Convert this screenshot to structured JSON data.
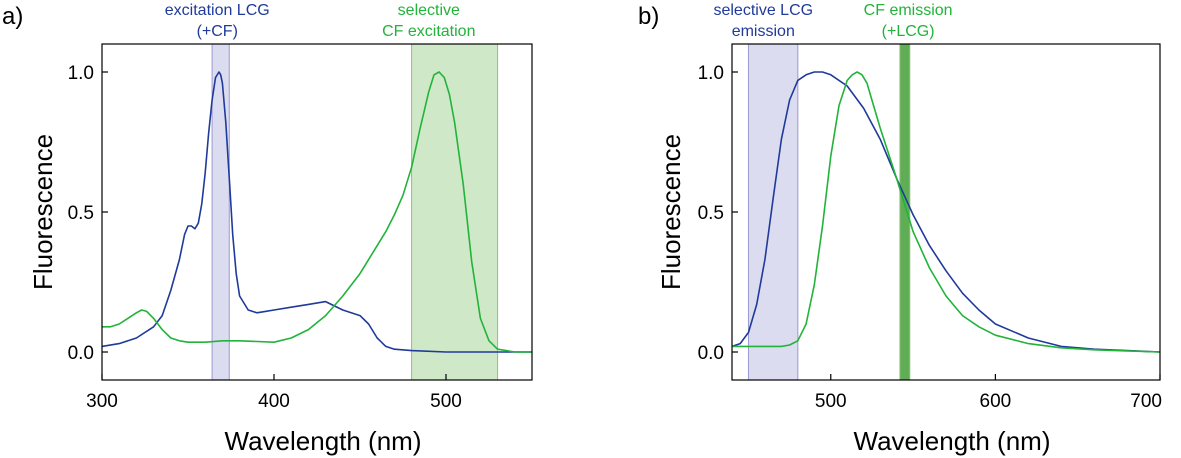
{
  "colors": {
    "blue": "#1f3a9b",
    "green": "#22b33a",
    "blue_band": "#dcdcf0",
    "blue_band_edge": "#9a9ad0",
    "green_band": "#cfe8c7",
    "green_band_edge": "#8cc07e",
    "green_band_dark": "#5fae55"
  },
  "chart_data": [
    {
      "type": "line",
      "panel": "a)",
      "xlabel": "Wavelength (nm)",
      "ylabel": "Fluorescence",
      "xlim": [
        300,
        550
      ],
      "ylim": [
        -0.1,
        1.1
      ],
      "xticks": [
        300,
        400,
        500
      ],
      "xtick_labels": [
        "300",
        "400",
        "500"
      ],
      "yticks": [
        0.0,
        0.5,
        1.0
      ],
      "ytick_labels": [
        "0.0",
        "0.5",
        "1.0"
      ],
      "bands": [
        {
          "name": "excitation-lcg-band",
          "from": 364,
          "to": 374,
          "color": "blue",
          "label_lines": [
            "excitation LCG",
            "(+CF)"
          ],
          "label_x": 367
        },
        {
          "name": "cf-excitation-band",
          "from": 480,
          "to": 530,
          "color": "green",
          "label_lines": [
            "selective",
            "CF excitation"
          ],
          "label_x": 490
        }
      ],
      "series": [
        {
          "name": "LCG excitation",
          "color": "blue",
          "x": [
            300,
            310,
            320,
            330,
            335,
            340,
            345,
            348,
            350,
            352,
            354,
            356,
            358,
            360,
            362,
            364,
            366,
            368,
            369,
            370,
            372,
            374,
            376,
            378,
            380,
            385,
            390,
            395,
            400,
            410,
            420,
            430,
            440,
            450,
            455,
            460,
            465,
            470,
            480,
            500,
            520,
            550
          ],
          "y": [
            0.02,
            0.03,
            0.05,
            0.09,
            0.13,
            0.22,
            0.33,
            0.42,
            0.45,
            0.45,
            0.44,
            0.46,
            0.53,
            0.64,
            0.78,
            0.9,
            0.98,
            1.0,
            0.99,
            0.96,
            0.82,
            0.62,
            0.42,
            0.28,
            0.2,
            0.15,
            0.14,
            0.145,
            0.15,
            0.16,
            0.17,
            0.18,
            0.15,
            0.13,
            0.1,
            0.05,
            0.02,
            0.01,
            0.005,
            0.0,
            0.0,
            0.0
          ]
        },
        {
          "name": "CF excitation",
          "color": "green",
          "x": [
            300,
            305,
            310,
            315,
            320,
            323,
            326,
            330,
            335,
            340,
            345,
            350,
            360,
            370,
            380,
            400,
            410,
            420,
            430,
            440,
            450,
            460,
            465,
            470,
            475,
            480,
            485,
            490,
            493,
            496,
            499,
            502,
            505,
            510,
            515,
            520,
            525,
            530,
            535,
            540,
            550
          ],
          "y": [
            0.09,
            0.09,
            0.1,
            0.12,
            0.14,
            0.15,
            0.145,
            0.12,
            0.08,
            0.05,
            0.04,
            0.035,
            0.035,
            0.04,
            0.04,
            0.035,
            0.05,
            0.08,
            0.13,
            0.2,
            0.28,
            0.38,
            0.43,
            0.49,
            0.56,
            0.66,
            0.8,
            0.93,
            0.99,
            1.0,
            0.98,
            0.92,
            0.82,
            0.6,
            0.32,
            0.12,
            0.04,
            0.01,
            0.005,
            0.0,
            0.0
          ]
        }
      ]
    },
    {
      "type": "line",
      "panel": "b)",
      "xlabel": "Wavelength (nm)",
      "ylabel": "Fluorescence",
      "xlim": [
        440,
        700
      ],
      "ylim": [
        -0.1,
        1.1
      ],
      "xticks": [
        500,
        600,
        700
      ],
      "xtick_labels": [
        "500",
        "600",
        "700"
      ],
      "yticks": [
        0.0,
        0.5,
        1.0
      ],
      "ytick_labels": [
        "0.0",
        "0.5",
        "1.0"
      ],
      "bands": [
        {
          "name": "lcg-emission-band",
          "from": 450,
          "to": 480,
          "color": "blue",
          "label_lines": [
            "selective LCG",
            "emission"
          ],
          "label_x": 459
        },
        {
          "name": "cf-emission-band",
          "from": 542,
          "to": 548,
          "color": "green_dark",
          "label_lines": [
            "CF emission",
            "(+LCG)"
          ],
          "label_x": 547
        }
      ],
      "series": [
        {
          "name": "LCG emission",
          "color": "blue",
          "x": [
            440,
            445,
            450,
            455,
            460,
            465,
            470,
            475,
            480,
            485,
            490,
            495,
            500,
            510,
            520,
            530,
            540,
            550,
            560,
            570,
            580,
            590,
            600,
            620,
            640,
            660,
            680,
            700
          ],
          "y": [
            0.02,
            0.03,
            0.07,
            0.17,
            0.33,
            0.55,
            0.76,
            0.9,
            0.97,
            0.99,
            1.0,
            1.0,
            0.99,
            0.95,
            0.87,
            0.76,
            0.62,
            0.49,
            0.38,
            0.29,
            0.21,
            0.15,
            0.1,
            0.05,
            0.02,
            0.01,
            0.005,
            0.0
          ]
        },
        {
          "name": "CF emission",
          "color": "green",
          "x": [
            440,
            450,
            460,
            470,
            475,
            480,
            485,
            490,
            495,
            500,
            505,
            510,
            513,
            516,
            519,
            522,
            525,
            530,
            540,
            550,
            560,
            570,
            580,
            590,
            600,
            620,
            640,
            660,
            680,
            700
          ],
          "y": [
            0.02,
            0.02,
            0.02,
            0.02,
            0.025,
            0.04,
            0.1,
            0.24,
            0.45,
            0.7,
            0.88,
            0.97,
            0.99,
            1.0,
            0.99,
            0.96,
            0.9,
            0.8,
            0.62,
            0.43,
            0.3,
            0.2,
            0.13,
            0.09,
            0.06,
            0.03,
            0.015,
            0.008,
            0.004,
            0.0
          ]
        }
      ]
    }
  ]
}
